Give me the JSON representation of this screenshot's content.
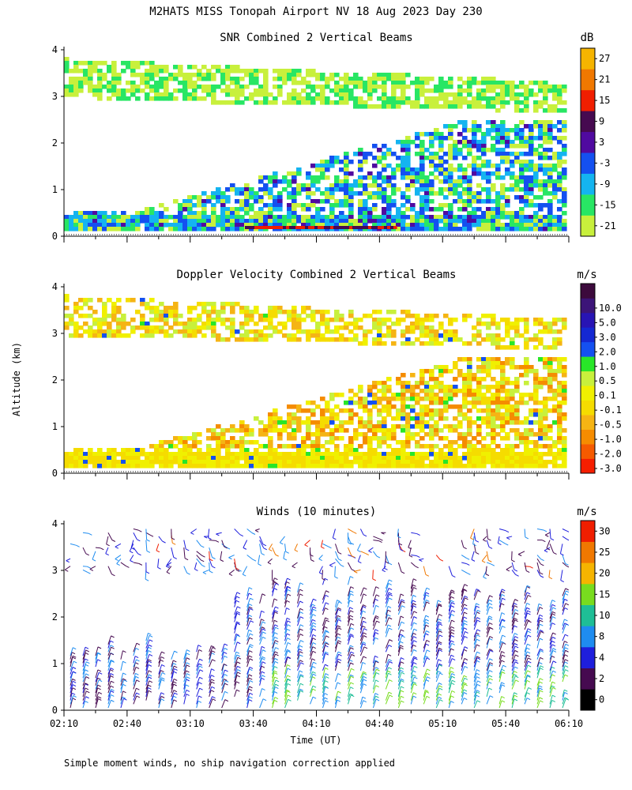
{
  "figure_title": "M2HATS MISS Tonopah Airport NV  18 Aug 2023 Day 230",
  "shared_ylabel": "Altitude (km)",
  "xlabel": "Time (UT)",
  "footnote": "Simple moment winds, no ship navigation correction applied",
  "colors": {
    "snr": [
      "#c8f03c",
      "#28e664",
      "#14b4f0",
      "#1450f0",
      "#500aa0",
      "#460a50",
      "#f01e00",
      "#f07800",
      "#f5b400"
    ],
    "doppler": [
      "#f51e00",
      "#f55a00",
      "#f58c00",
      "#f5b414",
      "#f5dc00",
      "#f0f000",
      "#c8f03c",
      "#28e628",
      "#1450f0",
      "#1428d2",
      "#2814b4",
      "#3c1478",
      "#3c0a3c"
    ],
    "winds": [
      "#000000",
      "#460a50",
      "#1e1edc",
      "#1e8cf0",
      "#1ebe96",
      "#78dc1e",
      "#f5b400",
      "#f07800",
      "#f01e00"
    ]
  },
  "chart_data": [
    {
      "type": "heatmap",
      "title": "SNR Combined 2 Vertical Beams",
      "ylabel": "Altitude (km)",
      "xlabel": "",
      "x_ticks": [
        "02:10",
        "02:40",
        "03:10",
        "03:40",
        "04:10",
        "04:40",
        "05:10",
        "05:40",
        "06:10"
      ],
      "x_range": [
        "02:10",
        "06:10"
      ],
      "y_ticks": [
        "0",
        "1",
        "2",
        "3",
        "4"
      ],
      "ylim": [
        0,
        4
      ],
      "colorbar_unit": "dB",
      "colorbar_labels": [
        "-21",
        "-15",
        "-9",
        "-3",
        "3",
        "9",
        "15",
        "21",
        "27"
      ]
    },
    {
      "type": "heatmap",
      "title": "Doppler Velocity Combined 2 Vertical Beams",
      "ylabel": "Altitude (km)",
      "xlabel": "",
      "x_ticks": [
        "02:10",
        "02:40",
        "03:10",
        "03:40",
        "04:10",
        "04:40",
        "05:10",
        "05:40",
        "06:10"
      ],
      "x_range": [
        "02:10",
        "06:10"
      ],
      "y_ticks": [
        "0",
        "1",
        "2",
        "3",
        "4"
      ],
      "ylim": [
        0,
        4
      ],
      "colorbar_unit": "m/s",
      "colorbar_labels": [
        "-3.0",
        "-2.0",
        "-1.0",
        "-0.5",
        "-0.1",
        "0.1",
        "0.5",
        "1.0",
        "2.0",
        "3.0",
        "5.0",
        "10.0"
      ]
    },
    {
      "type": "scatter",
      "title": "Winds (10 minutes)",
      "ylabel": "Altitude (km)",
      "xlabel": "Time (UT)",
      "x_ticks": [
        "02:10",
        "02:40",
        "03:10",
        "03:40",
        "04:10",
        "04:40",
        "05:10",
        "05:40",
        "06:10"
      ],
      "x_range": [
        "02:10",
        "06:10"
      ],
      "y_ticks": [
        "0",
        "1",
        "2",
        "3",
        "4"
      ],
      "ylim": [
        0,
        4
      ],
      "colorbar_unit": "m/s",
      "colorbar_labels": [
        "0",
        "2",
        "4",
        "8",
        "10",
        "15",
        "20",
        "25",
        "30"
      ]
    }
  ]
}
